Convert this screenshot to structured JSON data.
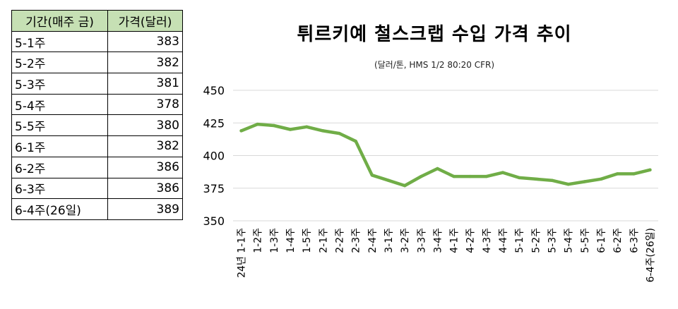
{
  "table": {
    "headers": [
      "기간(매주 금)",
      "가격(달러)"
    ],
    "rows": [
      {
        "period": "5-1주",
        "price": "383"
      },
      {
        "period": "5-2주",
        "price": "382"
      },
      {
        "period": "5-3주",
        "price": "381"
      },
      {
        "period": "5-4주",
        "price": "378"
      },
      {
        "period": "5-5주",
        "price": "380"
      },
      {
        "period": "6-1주",
        "price": "382"
      },
      {
        "period": "6-2주",
        "price": "386"
      },
      {
        "period": "6-3주",
        "price": "386"
      },
      {
        "period": "6-4주(26일)",
        "price": "389"
      }
    ]
  },
  "chart_data": {
    "type": "line",
    "title": "튀르키예 철스크랩 수입 가격 추이",
    "subtitle": "(달러/톤, HMS 1/2 80:20 CFR)",
    "xlabel": "",
    "ylabel": "",
    "categories": [
      "24년 1-1주",
      "1-2주",
      "1-3주",
      "1-4주",
      "1-5주",
      "2-1주",
      "2-2주",
      "2-3주",
      "2-4주",
      "3-1주",
      "3-2주",
      "3-3주",
      "3-4주",
      "4-1주",
      "4-2주",
      "4-3주",
      "4-4주",
      "5-1주",
      "5-2주",
      "5-3주",
      "5-4주",
      "5-5주",
      "6-1주",
      "6-2주",
      "6-3주",
      "6-4주(26일)"
    ],
    "series": [
      {
        "values": [
          419,
          424,
          423,
          420,
          422,
          419,
          417,
          411,
          385,
          381,
          377,
          384,
          390,
          384,
          384,
          384,
          387,
          383,
          382,
          381,
          378,
          380,
          382,
          386,
          386,
          389
        ]
      }
    ],
    "yticks": [
      350,
      375,
      400,
      425,
      450
    ],
    "ylim": [
      350,
      450
    ],
    "grid": true,
    "line_color": "#70ad47",
    "grid_color": "#d9d9d9"
  }
}
